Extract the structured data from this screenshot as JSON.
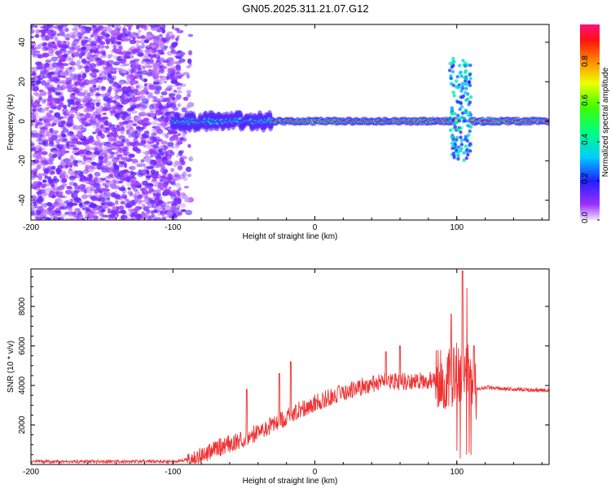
{
  "title": "GN05.2025.311.21.07.G12",
  "chart_data": [
    {
      "type": "heatmap",
      "name": "spectrogram",
      "xlabel": "Height of straight line (km)",
      "ylabel": "Frequency (Hz)",
      "xlim": [
        -200,
        165
      ],
      "ylim": [
        -50,
        49
      ],
      "xticks": [
        -200,
        -100,
        0,
        100
      ],
      "yticks": [
        -40,
        -20,
        0,
        20,
        40
      ],
      "colorbar": {
        "label": "Normalized spectral amplitude",
        "range": [
          0,
          1
        ],
        "ticks": [
          0.0,
          0.2,
          0.4,
          0.6,
          0.8
        ]
      },
      "features": [
        {
          "label": "broadband noise",
          "x_range": [
            -200,
            -95
          ],
          "f_range": [
            -50,
            49
          ],
          "amplitude": 0.1
        },
        {
          "label": "tone onset",
          "x_range": [
            -100,
            -30
          ],
          "f_center": 0,
          "amplitude": 0.4
        },
        {
          "label": "steady tone",
          "x_range": [
            -30,
            100
          ],
          "f_center": 0,
          "amplitude": 0.95
        },
        {
          "label": "burst",
          "x_range": [
            95,
            110
          ],
          "f_range": [
            -20,
            32
          ],
          "amplitude": 0.3
        },
        {
          "label": "clean tone",
          "x_range": [
            110,
            165
          ],
          "f_center": 0,
          "amplitude": 0.95
        }
      ]
    },
    {
      "type": "line",
      "name": "snr",
      "xlabel": "Height of straight line (km)",
      "ylabel": "SNR (10 * v/v)",
      "xlim": [
        -200,
        165
      ],
      "ylim": [
        0,
        9900
      ],
      "xticks": [
        -200,
        -100,
        0,
        100
      ],
      "yticks": [
        2000,
        4000,
        6000,
        8000
      ],
      "color": "#ee3333",
      "series": [
        {
          "name": "SNR",
          "x": [
            -200,
            -150,
            -100,
            -85,
            -70,
            -50,
            -30,
            -10,
            10,
            30,
            50,
            70,
            90,
            100,
            105,
            110,
            113,
            120,
            140,
            165
          ],
          "values": [
            150,
            150,
            150,
            300,
            800,
            1300,
            2000,
            2800,
            3400,
            3900,
            4200,
            4200,
            4300,
            4600,
            4800,
            4500,
            3800,
            3900,
            3800,
            3750
          ]
        },
        {
          "name": "SNR peaks",
          "x": [
            -48,
            -25,
            -17,
            50,
            60,
            96,
            104,
            107,
            112
          ],
          "values": [
            3800,
            4600,
            5200,
            5700,
            6000,
            7600,
            9800,
            8900,
            6000
          ]
        }
      ]
    }
  ]
}
